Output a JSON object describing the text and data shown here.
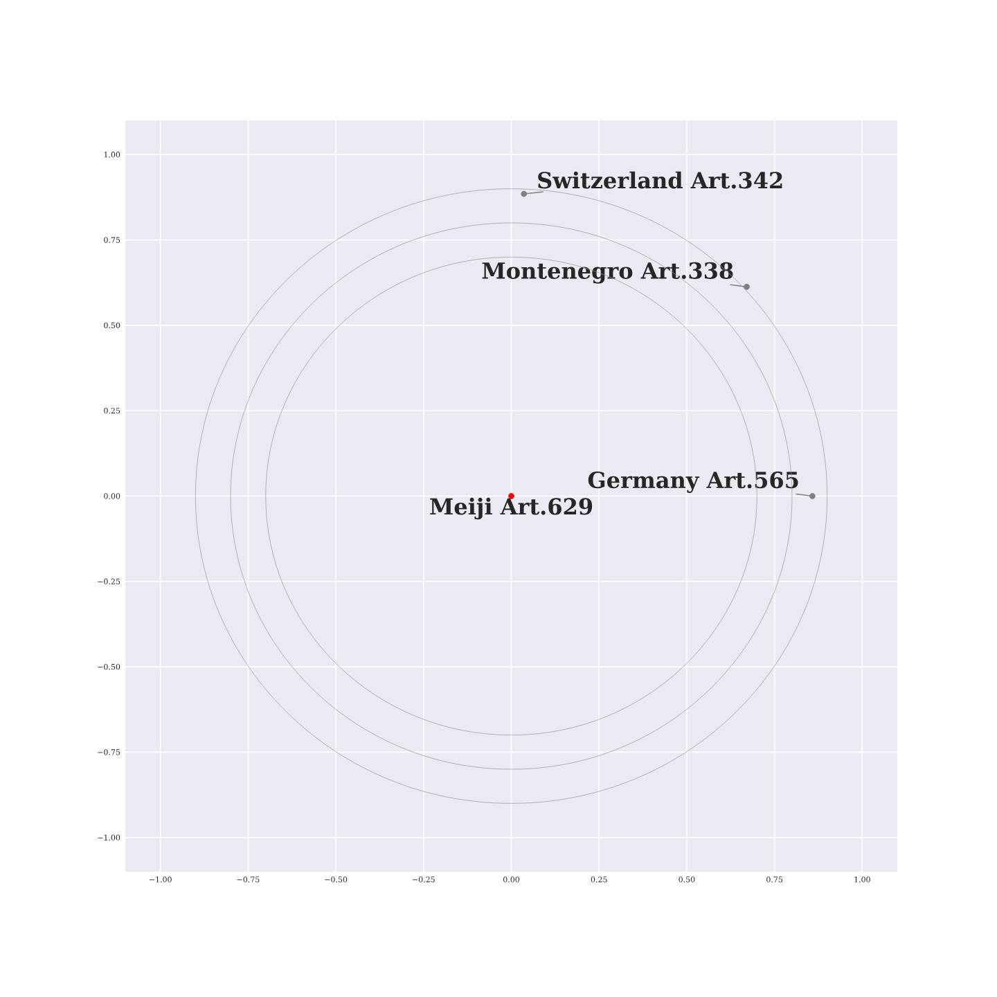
{
  "chart_data": {
    "type": "scatter",
    "series": [
      {
        "color": "#808080",
        "x": [
          0.036,
          0.671,
          0.858
        ],
        "values": [
          0.885,
          0.613,
          0
        ]
      },
      {
        "color": "#ff0000",
        "x": [
          0
        ],
        "values": [
          0
        ]
      }
    ],
    "annotations": [
      {
        "text": "Switzerland Art.342",
        "x": 0.036,
        "y": 0.885
      },
      {
        "text": "Montenegro Art.338",
        "x": 0.671,
        "y": 0.613
      },
      {
        "text": "Germany Art.565",
        "x": 0.858,
        "y": 0
      },
      {
        "text": "Meiji Art.629",
        "x": 0,
        "y": 0
      }
    ],
    "marker": "circle",
    "grid": true,
    "xlim": [
      -1.1,
      1.1
    ],
    "ylim": [
      -1.1,
      1.1
    ],
    "xticks": [
      {
        "value": -1,
        "label": "−1.00"
      },
      {
        "value": -0.75,
        "label": "−0.75"
      },
      {
        "value": -0.5,
        "label": "−0.50"
      },
      {
        "value": -0.25,
        "label": "−0.25"
      },
      {
        "value": 0,
        "label": "0.00"
      },
      {
        "value": 0.25,
        "label": "0.25"
      },
      {
        "value": 0.5,
        "label": "0.50"
      },
      {
        "value": 0.75,
        "label": "0.75"
      },
      {
        "value": 1,
        "label": "1.00"
      }
    ],
    "yticks": [
      {
        "value": -1,
        "label": "−1.00"
      },
      {
        "value": -0.75,
        "label": "−0.75"
      },
      {
        "value": -0.5,
        "label": "−0.50"
      },
      {
        "value": -0.25,
        "label": "−0.25"
      },
      {
        "value": 0,
        "label": "0.00"
      },
      {
        "value": 0.25,
        "label": "0.25"
      },
      {
        "value": 0.5,
        "label": "0.50"
      },
      {
        "value": 0.75,
        "label": "0.75"
      },
      {
        "value": 1,
        "label": "1.00"
      }
    ]
  }
}
